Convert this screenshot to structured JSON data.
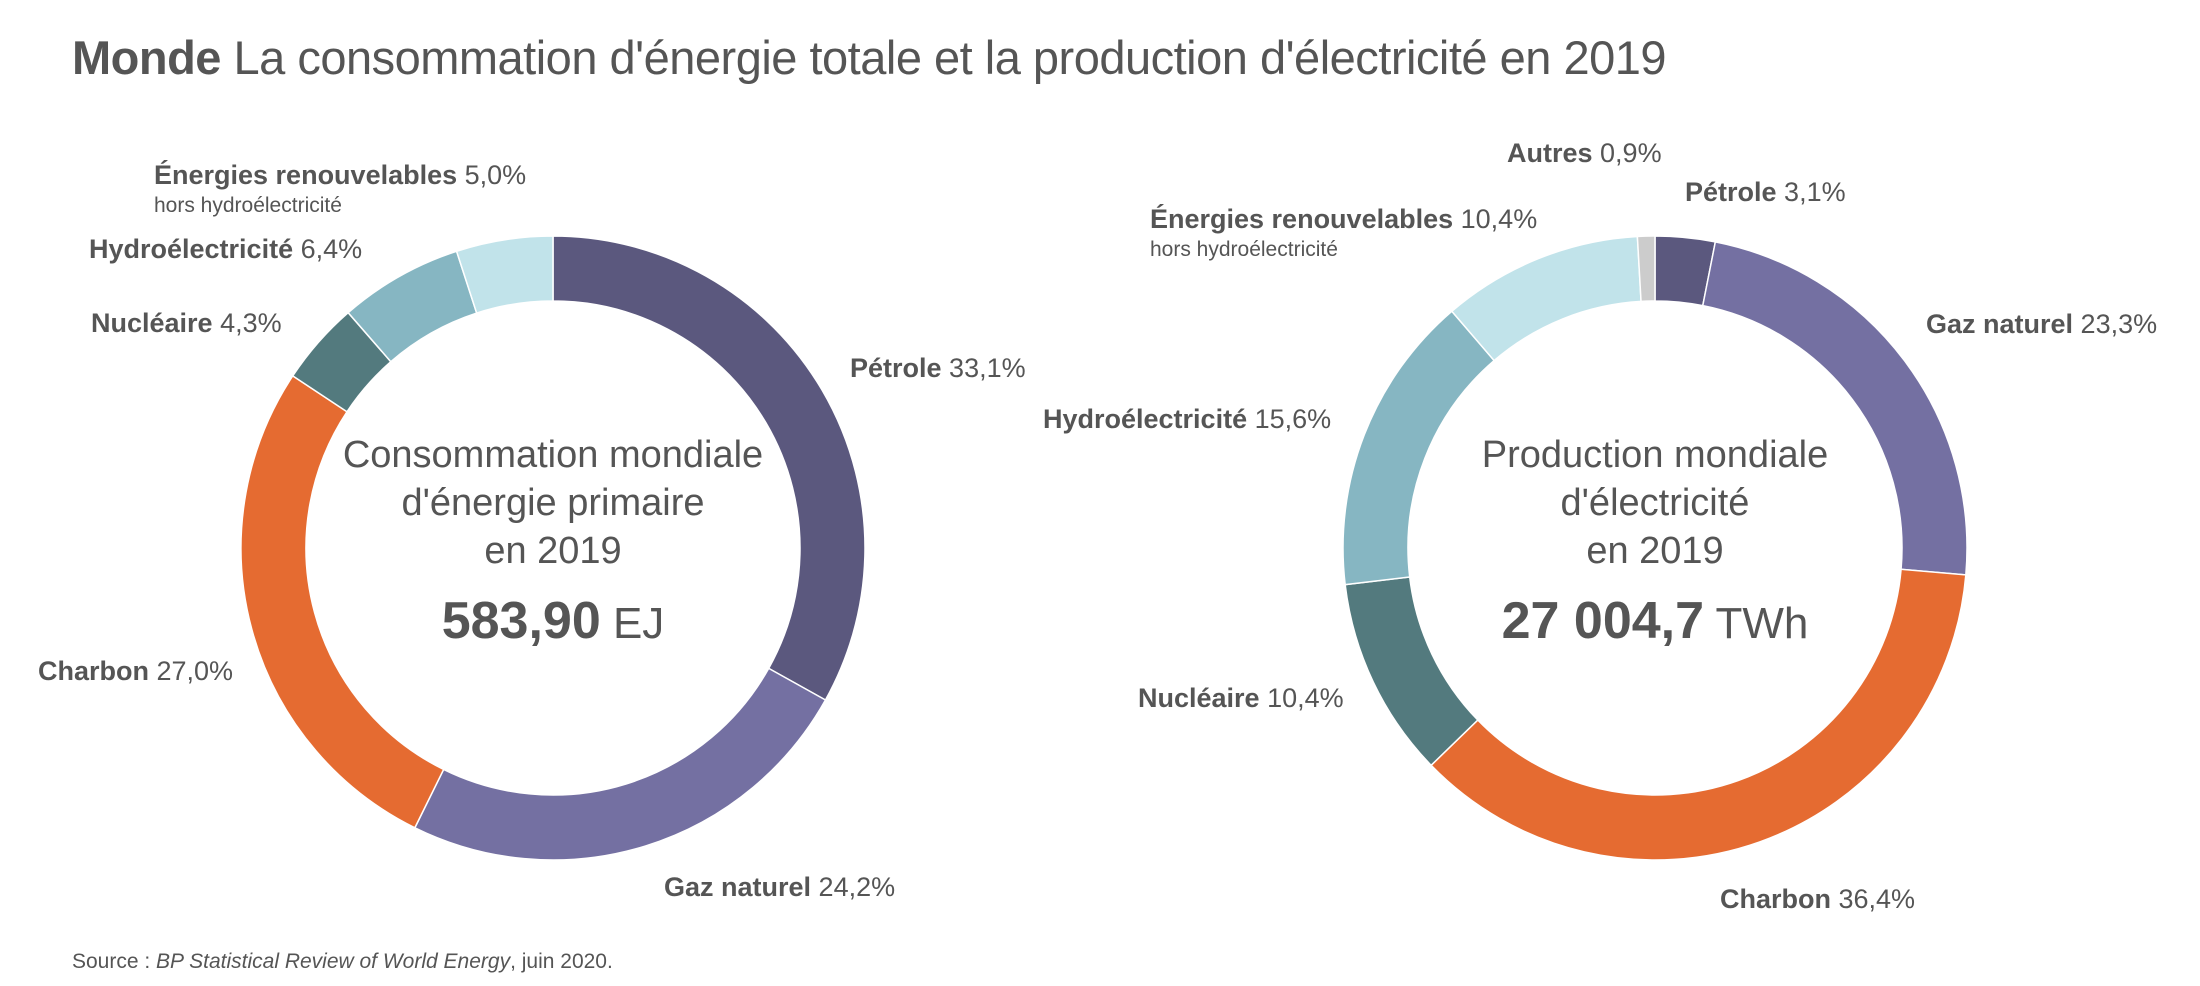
{
  "title": {
    "bold": "Monde",
    "rest": "La consommation d'énergie totale et la production d'électricité en 2019"
  },
  "source": {
    "prefix": "Source : ",
    "publication": "BP Statistical Review of World Energy",
    "suffix": ", juin 2020."
  },
  "colors": {
    "petrole_energy": "#5b587e",
    "petrole_elec": "#5b587e",
    "gaz": "#7470a2",
    "charbon": "#e56b31",
    "nucleaire": "#537a7e",
    "hydro": "#86b6c2",
    "renouvelables": "#c1e3ea",
    "autres": "#cccccc",
    "text": "#555555"
  },
  "chart_data": [
    {
      "type": "pie",
      "donut": true,
      "center": {
        "lines": [
          "Consommation mondiale",
          "d'énergie primaire",
          "en 2019"
        ],
        "value": "583,90",
        "unit": "EJ"
      },
      "slices": [
        {
          "name": "Pétrole",
          "value": 33.1,
          "label": "33,1%",
          "color": "#5b587e"
        },
        {
          "name": "Gaz naturel",
          "value": 24.2,
          "label": "24,2%",
          "color": "#7470a2"
        },
        {
          "name": "Charbon",
          "value": 27.0,
          "label": "27,0%",
          "color": "#e56b31"
        },
        {
          "name": "Nucléaire",
          "value": 4.3,
          "label": "4,3%",
          "color": "#537a7e"
        },
        {
          "name": "Hydroélectricité",
          "value": 6.4,
          "label": "6,4%",
          "color": "#86b6c2"
        },
        {
          "name": "Énergies renouvelables",
          "sub": "hors hydroélectricité",
          "value": 5.0,
          "label": "5,0%",
          "color": "#c1e3ea"
        }
      ]
    },
    {
      "type": "pie",
      "donut": true,
      "center": {
        "lines": [
          "Production mondiale",
          "d'électricité",
          "en 2019"
        ],
        "value": "27 004,7",
        "unit": "TWh"
      },
      "slices": [
        {
          "name": "Pétrole",
          "value": 3.1,
          "label": "3,1%",
          "color": "#5b587e"
        },
        {
          "name": "Gaz naturel",
          "value": 23.3,
          "label": "23,3%",
          "color": "#7470a2"
        },
        {
          "name": "Charbon",
          "value": 36.4,
          "label": "36,4%",
          "color": "#e56b31"
        },
        {
          "name": "Nucléaire",
          "value": 10.4,
          "label": "10,4%",
          "color": "#537a7e"
        },
        {
          "name": "Hydroélectricité",
          "value": 15.6,
          "label": "15,6%",
          "color": "#86b6c2"
        },
        {
          "name": "Énergies renouvelables",
          "sub": "hors hydroélectricité",
          "value": 10.4,
          "label": "10,4%",
          "color": "#c1e3ea"
        },
        {
          "name": "Autres",
          "value": 0.9,
          "label": "0,9%",
          "color": "#cccccc"
        }
      ]
    }
  ]
}
